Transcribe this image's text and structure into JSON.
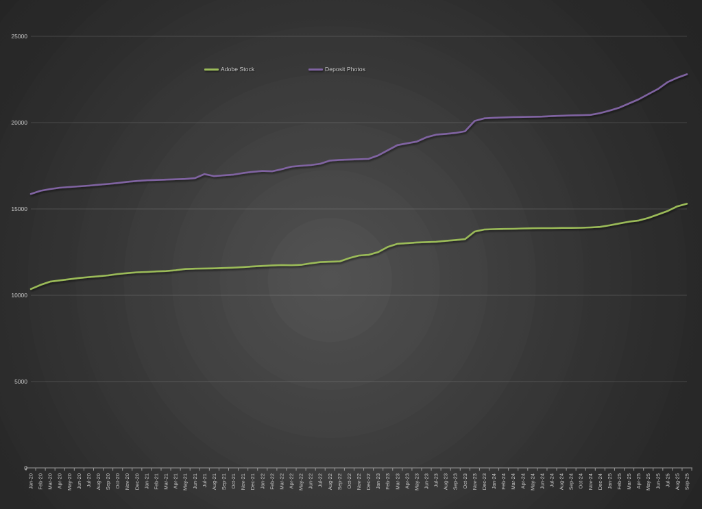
{
  "chart_data": {
    "type": "line",
    "title": "",
    "xlabel": "",
    "ylabel": "",
    "ylim": [
      0,
      25000
    ],
    "y_ticks": [
      0,
      5000,
      10000,
      15000,
      20000,
      25000
    ],
    "grid": "horizontal",
    "legend_position": "top-inside",
    "x": [
      "Jan-20",
      "Feb-20",
      "Mar-20",
      "Apr-20",
      "May-20",
      "Jun-20",
      "Jul-20",
      "Aug-20",
      "Sep-20",
      "Oct-20",
      "Nov-20",
      "Dec-20",
      "Jan-21",
      "Feb-21",
      "Mar-21",
      "Apr-21",
      "May-21",
      "Jun-21",
      "Jul-21",
      "Aug-21",
      "Sep-21",
      "Oct-21",
      "Nov-21",
      "Dec-21",
      "Jan-22",
      "Feb-22",
      "Mar-22",
      "Apr-22",
      "May-22",
      "Jun-22",
      "Jul-22",
      "Aug-22",
      "Sep-22",
      "Oct-22",
      "Nov-22",
      "Dec-22",
      "Jan-23",
      "Feb-23",
      "Mar-23",
      "Apr-23",
      "May-23",
      "Jun-23",
      "Jul-23",
      "Aug-23",
      "Sep-23",
      "Oct-23",
      "Nov-23",
      "Dec-23",
      "Jan-24",
      "Feb-24",
      "Mar-24",
      "Apr-24",
      "May-24",
      "Jun-24",
      "Jul-24",
      "Aug-24",
      "Sep-24",
      "Oct-24",
      "Nov-24",
      "Dec-24",
      "Jan-25",
      "Feb-25",
      "Mar-25",
      "Apr-25",
      "May-25",
      "Jun-25",
      "Jul-25",
      "Aug-25",
      "Sep-25"
    ],
    "series": [
      {
        "name": "Adobe Stock",
        "color": "#9BBB59",
        "values": [
          10360,
          10600,
          10790,
          10860,
          10930,
          11000,
          11050,
          11100,
          11150,
          11230,
          11280,
          11330,
          11350,
          11380,
          11400,
          11450,
          11520,
          11540,
          11550,
          11560,
          11580,
          11600,
          11630,
          11670,
          11700,
          11730,
          11750,
          11740,
          11760,
          11850,
          11920,
          11940,
          11960,
          12150,
          12300,
          12340,
          12500,
          12800,
          12980,
          13020,
          13060,
          13080,
          13100,
          13150,
          13200,
          13250,
          13690,
          13810,
          13830,
          13840,
          13850,
          13870,
          13880,
          13890,
          13890,
          13900,
          13900,
          13910,
          13930,
          13960,
          14050,
          14160,
          14260,
          14330,
          14480,
          14680,
          14880,
          15150,
          15300
        ]
      },
      {
        "name": "Deposit Photos",
        "color": "#8064A2",
        "values": [
          15870,
          16050,
          16150,
          16230,
          16270,
          16310,
          16350,
          16400,
          16450,
          16500,
          16570,
          16620,
          16660,
          16680,
          16700,
          16720,
          16740,
          16780,
          17020,
          16900,
          16950,
          16990,
          17080,
          17150,
          17200,
          17180,
          17300,
          17450,
          17500,
          17540,
          17620,
          17800,
          17840,
          17860,
          17880,
          17900,
          18100,
          18400,
          18700,
          18800,
          18900,
          19150,
          19300,
          19350,
          19400,
          19500,
          20100,
          20250,
          20280,
          20300,
          20320,
          20330,
          20340,
          20350,
          20380,
          20400,
          20420,
          20430,
          20450,
          20550,
          20700,
          20870,
          21110,
          21350,
          21650,
          21950,
          22350,
          22600,
          22800
        ]
      }
    ]
  },
  "style": {
    "axis_text_color": "#c8c8c8",
    "gridline_color": "rgba(255,255,255,0.14)",
    "axis_line_color": "#9a9a9a",
    "background_center": "#525252",
    "background_edge": "#222222"
  }
}
